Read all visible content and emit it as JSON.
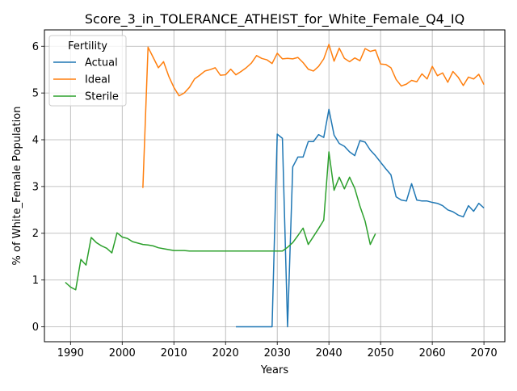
{
  "chart_data": {
    "type": "line",
    "title": "Score_3_in_TOLERANCE_ATHEIST_for_White_Female_Q4_IQ",
    "xlabel": "Years",
    "ylabel": "% of White_Female Population",
    "xlim": [
      1984.95,
      2074.05
    ],
    "ylim": [
      -0.32,
      6.35
    ],
    "xticks": [
      1990,
      2000,
      2010,
      2020,
      2030,
      2040,
      2050,
      2060,
      2070
    ],
    "yticks": [
      0,
      1,
      2,
      3,
      4,
      5,
      6
    ],
    "grid": true,
    "legend": {
      "title": "Fertility",
      "placement": "top-left"
    },
    "series": [
      {
        "name": "Actual",
        "color": "#1f77b4",
        "x": [
          2022,
          2023,
          2024,
          2025,
          2026,
          2027,
          2028,
          2029,
          2030,
          2031,
          2032,
          2033,
          2034,
          2035,
          2036,
          2037,
          2038,
          2039,
          2040,
          2041,
          2042,
          2043,
          2044,
          2045,
          2046,
          2047,
          2048,
          2049,
          2050,
          2051,
          2052,
          2053,
          2054,
          2055,
          2056,
          2057,
          2058,
          2059,
          2060,
          2061,
          2062,
          2063,
          2064,
          2065,
          2066,
          2067,
          2068,
          2069,
          2070
        ],
        "y": [
          0,
          0,
          0,
          0,
          0,
          0,
          0,
          0,
          4.12,
          4.03,
          0,
          3.42,
          3.63,
          3.63,
          3.96,
          3.96,
          4.11,
          4.05,
          4.65,
          4.1,
          3.92,
          3.86,
          3.74,
          3.66,
          3.98,
          3.95,
          3.78,
          3.66,
          3.52,
          3.38,
          3.25,
          2.78,
          2.71,
          2.69,
          3.06,
          2.71,
          2.69,
          2.69,
          2.66,
          2.64,
          2.59,
          2.5,
          2.46,
          2.39,
          2.35,
          2.59,
          2.47,
          2.64,
          2.54
        ]
      },
      {
        "name": "Ideal",
        "color": "#ff7f0e",
        "x": [
          2004,
          2005,
          2006,
          2007,
          2008,
          2009,
          2010,
          2011,
          2012,
          2013,
          2014,
          2015,
          2016,
          2017,
          2018,
          2019,
          2020,
          2021,
          2022,
          2023,
          2024,
          2025,
          2026,
          2027,
          2028,
          2029,
          2030,
          2031,
          2032,
          2033,
          2034,
          2035,
          2036,
          2037,
          2038,
          2039,
          2040,
          2041,
          2042,
          2043,
          2044,
          2045,
          2046,
          2047,
          2048,
          2049,
          2050,
          2051,
          2052,
          2053,
          2054,
          2055,
          2056,
          2057,
          2058,
          2059,
          2060,
          2061,
          2062,
          2063,
          2064,
          2065,
          2066,
          2067,
          2068,
          2069,
          2070
        ],
        "y": [
          2.97,
          5.98,
          5.76,
          5.54,
          5.67,
          5.36,
          5.12,
          4.94,
          5.0,
          5.12,
          5.3,
          5.38,
          5.47,
          5.5,
          5.54,
          5.38,
          5.39,
          5.51,
          5.39,
          5.46,
          5.54,
          5.64,
          5.8,
          5.74,
          5.71,
          5.63,
          5.85,
          5.73,
          5.74,
          5.73,
          5.76,
          5.65,
          5.51,
          5.47,
          5.57,
          5.73,
          6.04,
          5.68,
          5.96,
          5.74,
          5.67,
          5.75,
          5.69,
          5.95,
          5.89,
          5.92,
          5.62,
          5.61,
          5.54,
          5.29,
          5.15,
          5.19,
          5.27,
          5.24,
          5.41,
          5.3,
          5.57,
          5.37,
          5.43,
          5.23,
          5.46,
          5.34,
          5.16,
          5.34,
          5.3,
          5.4,
          5.18
        ]
      },
      {
        "name": "Sterile",
        "color": "#2ca02c",
        "x": [
          1989,
          1990,
          1991,
          1992,
          1993,
          1994,
          1995,
          1996,
          1997,
          1998,
          1999,
          2000,
          2001,
          2002,
          2003,
          2004,
          2005,
          2006,
          2007,
          2008,
          2009,
          2010,
          2011,
          2012,
          2013,
          2014,
          2015,
          2016,
          2017,
          2018,
          2019,
          2020,
          2021,
          2022,
          2023,
          2024,
          2025,
          2026,
          2027,
          2028,
          2029,
          2030,
          2031,
          2032,
          2033,
          2034,
          2035,
          2036,
          2037,
          2038,
          2039,
          2040,
          2041,
          2042,
          2043,
          2044,
          2045,
          2046,
          2047,
          2048,
          2049
        ],
        "y": [
          0.95,
          0.85,
          0.79,
          1.44,
          1.32,
          1.91,
          1.8,
          1.73,
          1.68,
          1.58,
          2.01,
          1.92,
          1.89,
          1.82,
          1.79,
          1.76,
          1.75,
          1.73,
          1.69,
          1.67,
          1.65,
          1.63,
          1.63,
          1.63,
          1.62,
          1.62,
          1.62,
          1.62,
          1.62,
          1.62,
          1.62,
          1.62,
          1.62,
          1.62,
          1.62,
          1.62,
          1.62,
          1.62,
          1.62,
          1.62,
          1.62,
          1.62,
          1.62,
          1.7,
          1.8,
          1.95,
          2.11,
          1.76,
          1.93,
          2.1,
          2.28,
          3.74,
          2.92,
          3.2,
          2.95,
          3.2,
          2.96,
          2.58,
          2.26,
          1.76,
          1.99
        ]
      }
    ]
  }
}
